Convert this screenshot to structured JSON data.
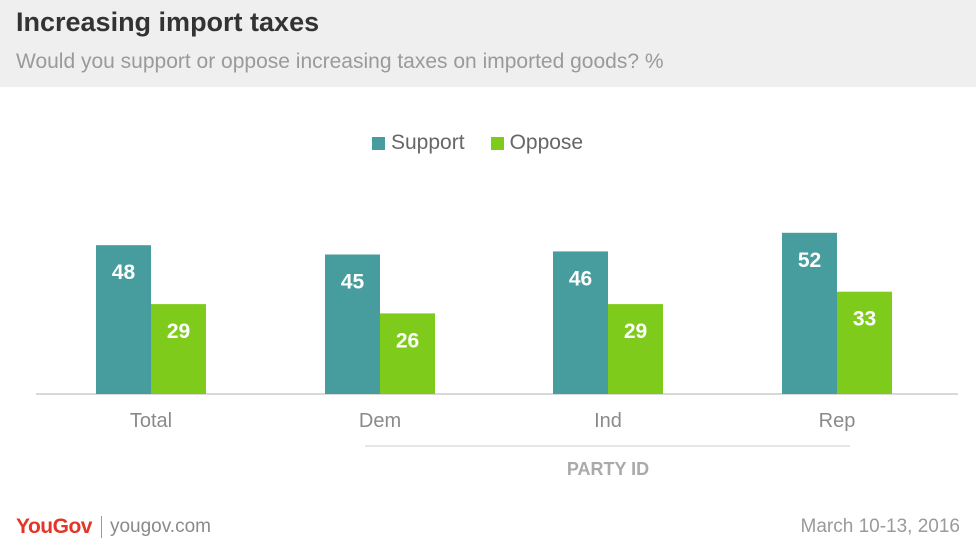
{
  "header": {
    "title": "Increasing import taxes",
    "subtitle": "Would you support or oppose increasing taxes on imported goods? %"
  },
  "footer": {
    "brand": "YouGov",
    "site": "yougov.com",
    "date": "March 10-13, 2016"
  },
  "colors": {
    "support": "#479c9e",
    "oppose": "#7fcb1c",
    "value_label": "#ffffff"
  },
  "chart_data": {
    "type": "bar",
    "title": "Increasing import taxes",
    "subtitle": "Would you support or oppose increasing taxes on imported goods? %",
    "categories": [
      "Total",
      "Dem",
      "Ind",
      "Rep"
    ],
    "series": [
      {
        "name": "Support",
        "values": [
          48,
          45,
          46,
          52
        ]
      },
      {
        "name": "Oppose",
        "values": [
          29,
          26,
          29,
          33
        ]
      }
    ],
    "group_label": "PARTY ID",
    "group_categories": [
      "Dem",
      "Ind",
      "Rep"
    ],
    "xlabel": "",
    "ylabel": "",
    "ylim": [
      0,
      55
    ],
    "grid": false,
    "legend": "top-center",
    "data_labels": true
  }
}
